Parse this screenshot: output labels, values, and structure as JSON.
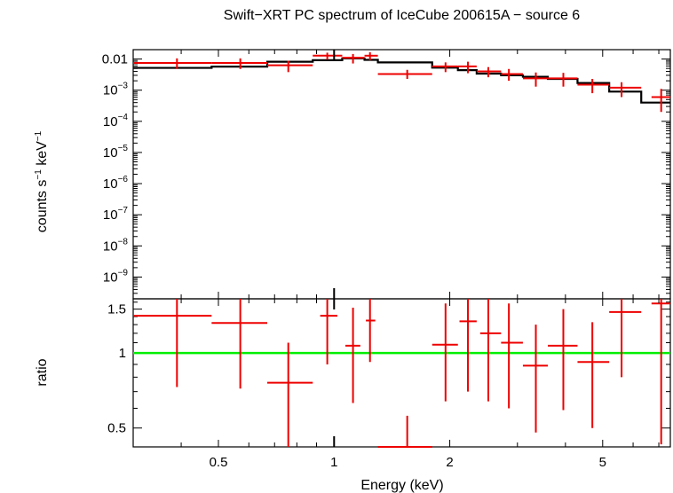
{
  "chart_data": [
    {
      "type": "step-spectrum",
      "title": "Swift−XRT PC spectrum of IceCube 200615A − source 6",
      "ylabel_main": "counts s",
      "ylabel_exp1": "−1",
      "ylabel_mid": " keV",
      "ylabel_exp2": "−1",
      "xscale": "log",
      "yscale": "log",
      "xlim": [
        0.3,
        7.5
      ],
      "ylim": [
        2e-10,
        0.02
      ],
      "y_ticks": [
        {
          "value": 0.01,
          "base": "0.01",
          "exp": ""
        },
        {
          "value": 0.001,
          "base": "10",
          "exp": "−3"
        },
        {
          "value": 0.0001,
          "base": "10",
          "exp": "−4"
        },
        {
          "value": 1e-05,
          "base": "10",
          "exp": "−5"
        },
        {
          "value": 1e-06,
          "base": "10",
          "exp": "−6"
        },
        {
          "value": 1e-07,
          "base": "10",
          "exp": "−7"
        },
        {
          "value": 1e-08,
          "base": "10",
          "exp": "−8"
        },
        {
          "value": 1e-09,
          "base": "10",
          "exp": "−9"
        }
      ],
      "data_color": "#ee0000",
      "model_color": "#000000",
      "points": [
        {
          "x": 0.39,
          "xlo": 0.3,
          "xhi": 0.48,
          "y": 0.0075,
          "ylo": 0.0048,
          "yhi": 0.0105
        },
        {
          "x": 0.57,
          "xlo": 0.48,
          "xhi": 0.67,
          "y": 0.0075,
          "ylo": 0.0048,
          "yhi": 0.0105
        },
        {
          "x": 0.76,
          "xlo": 0.67,
          "xhi": 0.88,
          "y": 0.0063,
          "ylo": 0.0038,
          "yhi": 0.0088
        },
        {
          "x": 0.96,
          "xlo": 0.88,
          "xhi": 1.05,
          "y": 0.0128,
          "ylo": 0.0095,
          "yhi": 0.016
        },
        {
          "x": 1.12,
          "xlo": 1.05,
          "xhi": 1.2,
          "y": 0.011,
          "ylo": 0.0072,
          "yhi": 0.0145
        },
        {
          "x": 1.24,
          "xlo": 1.2,
          "xhi": 1.3,
          "y": 0.0128,
          "ylo": 0.0092,
          "yhi": 0.0165
        },
        {
          "x": 1.55,
          "xlo": 1.3,
          "xhi": 1.8,
          "y": 0.0033,
          "ylo": 0.0023,
          "yhi": 0.0045
        },
        {
          "x": 1.95,
          "xlo": 1.8,
          "xhi": 2.1,
          "y": 0.0058,
          "ylo": 0.0038,
          "yhi": 0.0078
        },
        {
          "x": 2.23,
          "xlo": 2.1,
          "xhi": 2.35,
          "y": 0.0058,
          "ylo": 0.0035,
          "yhi": 0.0082
        },
        {
          "x": 2.52,
          "xlo": 2.35,
          "xhi": 2.72,
          "y": 0.004,
          "ylo": 0.0026,
          "yhi": 0.0055
        },
        {
          "x": 2.85,
          "xlo": 2.72,
          "xhi": 3.1,
          "y": 0.0033,
          "ylo": 0.002,
          "yhi": 0.0048
        },
        {
          "x": 3.35,
          "xlo": 3.1,
          "xhi": 3.6,
          "y": 0.0024,
          "ylo": 0.0013,
          "yhi": 0.0037
        },
        {
          "x": 3.95,
          "xlo": 3.6,
          "xhi": 4.3,
          "y": 0.0024,
          "ylo": 0.0013,
          "yhi": 0.0036
        },
        {
          "x": 4.7,
          "xlo": 4.3,
          "xhi": 5.2,
          "y": 0.0015,
          "ylo": 0.0008,
          "yhi": 0.0023
        },
        {
          "x": 5.6,
          "xlo": 5.2,
          "xhi": 6.3,
          "y": 0.0012,
          "ylo": 0.0006,
          "yhi": 0.0018
        },
        {
          "x": 7.1,
          "xlo": 6.7,
          "xhi": 7.5,
          "y": 0.0006,
          "ylo": 0.0002,
          "yhi": 0.0011
        }
      ],
      "model": [
        {
          "xlo": 0.3,
          "xhi": 0.48,
          "y": 0.0052
        },
        {
          "xlo": 0.48,
          "xhi": 0.67,
          "y": 0.0057
        },
        {
          "xlo": 0.67,
          "xhi": 0.88,
          "y": 0.0082
        },
        {
          "xlo": 0.88,
          "xhi": 1.05,
          "y": 0.0092
        },
        {
          "xlo": 1.05,
          "xhi": 1.2,
          "y": 0.0105
        },
        {
          "xlo": 1.2,
          "xhi": 1.3,
          "y": 0.0094
        },
        {
          "xlo": 1.3,
          "xhi": 1.8,
          "y": 0.0078
        },
        {
          "xlo": 1.8,
          "xhi": 2.1,
          "y": 0.0053
        },
        {
          "xlo": 2.1,
          "xhi": 2.35,
          "y": 0.0044
        },
        {
          "xlo": 2.35,
          "xhi": 2.72,
          "y": 0.0034
        },
        {
          "xlo": 2.72,
          "xhi": 3.1,
          "y": 0.003
        },
        {
          "xlo": 3.1,
          "xhi": 3.6,
          "y": 0.0027
        },
        {
          "xlo": 3.6,
          "xhi": 4.3,
          "y": 0.0023
        },
        {
          "xlo": 4.3,
          "xhi": 5.2,
          "y": 0.0017
        },
        {
          "xlo": 5.2,
          "xhi": 6.3,
          "y": 0.0009
        },
        {
          "xlo": 6.3,
          "xhi": 7.5,
          "y": 0.0004
        }
      ]
    },
    {
      "type": "scatter",
      "ylabel": "ratio",
      "xlabel": "Energy (keV)",
      "xscale": "log",
      "yscale": "log",
      "xlim": [
        0.3,
        7.5
      ],
      "ylim": [
        0.42,
        1.65
      ],
      "x_ticks": [
        {
          "value": 0.5,
          "label": "0.5"
        },
        {
          "value": 1,
          "label": "1"
        },
        {
          "value": 2,
          "label": "2"
        },
        {
          "value": 5,
          "label": "5"
        }
      ],
      "y_ticks": [
        {
          "value": 0.5,
          "label": "0.5"
        },
        {
          "value": 1,
          "label": "1"
        },
        {
          "value": 1.5,
          "label": "1.5"
        }
      ],
      "reference_line": 1,
      "reference_color": "#00ee00",
      "data_color": "#ee0000",
      "points": [
        {
          "x": 0.39,
          "xlo": 0.3,
          "xhi": 0.48,
          "y": 1.41,
          "ylo": 0.73,
          "yhi": 1.65
        },
        {
          "x": 0.57,
          "xlo": 0.48,
          "xhi": 0.67,
          "y": 1.32,
          "ylo": 0.72,
          "yhi": 1.65
        },
        {
          "x": 0.76,
          "xlo": 0.67,
          "xhi": 0.88,
          "y": 0.76,
          "ylo": 0.42,
          "yhi": 1.1
        },
        {
          "x": 0.96,
          "xlo": 0.92,
          "xhi": 1.02,
          "y": 1.41,
          "ylo": 0.9,
          "yhi": 1.65
        },
        {
          "x": 1.12,
          "xlo": 1.07,
          "xhi": 1.17,
          "y": 1.07,
          "ylo": 0.63,
          "yhi": 1.52
        },
        {
          "x": 1.24,
          "xlo": 1.21,
          "xhi": 1.28,
          "y": 1.35,
          "ylo": 0.92,
          "yhi": 1.65
        },
        {
          "x": 1.55,
          "xlo": 1.3,
          "xhi": 1.8,
          "y": 0.4,
          "ylo": 0.4,
          "yhi": 0.56
        },
        {
          "x": 1.95,
          "xlo": 1.8,
          "xhi": 2.1,
          "y": 1.08,
          "ylo": 0.64,
          "yhi": 1.58
        },
        {
          "x": 2.23,
          "xlo": 2.12,
          "xhi": 2.35,
          "y": 1.34,
          "ylo": 0.7,
          "yhi": 1.65
        },
        {
          "x": 2.52,
          "xlo": 2.4,
          "xhi": 2.72,
          "y": 1.2,
          "ylo": 0.64,
          "yhi": 1.65
        },
        {
          "x": 2.85,
          "xlo": 2.72,
          "xhi": 3.1,
          "y": 1.1,
          "ylo": 0.6,
          "yhi": 1.58
        },
        {
          "x": 3.35,
          "xlo": 3.1,
          "xhi": 3.6,
          "y": 0.89,
          "ylo": 0.48,
          "yhi": 1.3
        },
        {
          "x": 3.95,
          "xlo": 3.6,
          "xhi": 4.3,
          "y": 1.07,
          "ylo": 0.59,
          "yhi": 1.5
        },
        {
          "x": 4.7,
          "xlo": 4.3,
          "xhi": 5.2,
          "y": 0.92,
          "ylo": 0.5,
          "yhi": 1.33
        },
        {
          "x": 5.6,
          "xlo": 5.2,
          "xhi": 6.3,
          "y": 1.46,
          "ylo": 0.8,
          "yhi": 1.65
        },
        {
          "x": 7.1,
          "xlo": 6.7,
          "xhi": 7.5,
          "y": 1.58,
          "ylo": 0.43,
          "yhi": 1.65
        }
      ]
    }
  ]
}
